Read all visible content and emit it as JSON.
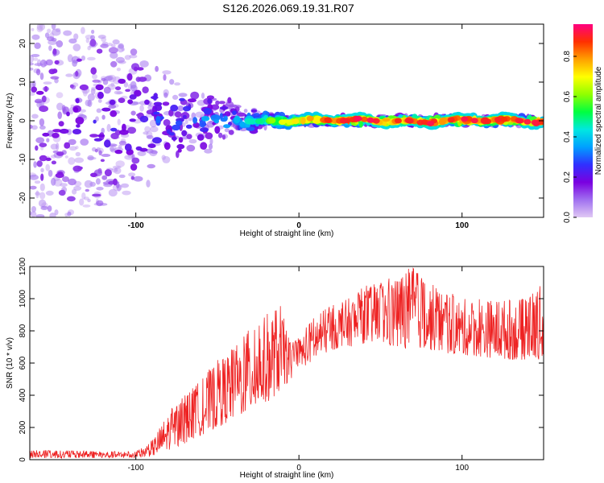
{
  "page_title": "S126.2026.069.19.31.R07",
  "colors": {
    "axis": "#000000",
    "snr_line": "#ee2222",
    "scatter": "#7a20e8",
    "colormap": [
      "#e0c8f4",
      "#a070f0",
      "#7a00e0",
      "#3030ff",
      "#00a0ff",
      "#00e8e0",
      "#00ff40",
      "#90ff00",
      "#ffff00",
      "#ffa000",
      "#ff3000",
      "#ff0080"
    ]
  },
  "chart_data": [
    {
      "type": "heatmap",
      "title": "",
      "xlabel": "Height of straight line (km)",
      "ylabel": "Frequency (Hz)",
      "xlim": [
        -165,
        150
      ],
      "ylim": [
        -25,
        25
      ],
      "x_ticks": [
        -100,
        0,
        100
      ],
      "x_tick_labels": [
        "-100",
        "0",
        "100"
      ],
      "y_ticks": [
        -20,
        -10,
        0,
        10,
        20
      ],
      "y_tick_labels": [
        "-20",
        "-10",
        "0",
        "10",
        "20"
      ],
      "colorbar": {
        "label": "Normalized spectral amplitude",
        "range": [
          0,
          0.96
        ],
        "ticks": [
          0.0,
          0.2,
          0.4,
          0.6,
          0.8
        ],
        "tick_labels": [
          "0.0",
          "0.2",
          "0.4",
          "0.6",
          "0.8"
        ]
      },
      "spread_hz": [
        [
          -165,
          25
        ],
        [
          -130,
          24
        ],
        [
          -100,
          18
        ],
        [
          -80,
          12
        ],
        [
          -60,
          7
        ],
        [
          -40,
          5
        ],
        [
          -25,
          2.5
        ],
        [
          -10,
          1.5
        ],
        [
          0,
          1.2
        ],
        [
          50,
          1.2
        ],
        [
          150,
          1.2
        ]
      ],
      "peak_amplitude": [
        [
          -165,
          0.22
        ],
        [
          -100,
          0.28
        ],
        [
          -80,
          0.33
        ],
        [
          -60,
          0.4
        ],
        [
          -40,
          0.42
        ],
        [
          -25,
          0.5
        ],
        [
          -10,
          0.7
        ],
        [
          0,
          0.85
        ],
        [
          20,
          0.95
        ],
        [
          150,
          0.92
        ]
      ]
    },
    {
      "type": "line",
      "title": "",
      "xlabel": "Height of straight line (km)",
      "ylabel": "SNR (10 * v/v)",
      "xlim": [
        -165,
        150
      ],
      "ylim": [
        0,
        1200
      ],
      "x_ticks": [
        -100,
        0,
        100
      ],
      "x_tick_labels": [
        "-100",
        "0",
        "100"
      ],
      "y_ticks": [
        0,
        200,
        400,
        600,
        800,
        1000,
        1200
      ],
      "y_tick_labels": [
        "0",
        "200",
        "400",
        "600",
        "800",
        "1000",
        "1200"
      ],
      "series": [
        {
          "name": "SNR",
          "envelope": [
            [
              -165,
              10,
              60
            ],
            [
              -100,
              10,
              50
            ],
            [
              -90,
              20,
              120
            ],
            [
              -80,
              60,
              300
            ],
            [
              -70,
              100,
              400
            ],
            [
              -60,
              150,
              500
            ],
            [
              -50,
              200,
              620
            ],
            [
              -40,
              250,
              700
            ],
            [
              -30,
              300,
              820
            ],
            [
              -20,
              350,
              900
            ],
            [
              -12,
              420,
              980
            ],
            [
              -5,
              500,
              720
            ],
            [
              0,
              560,
              760
            ],
            [
              10,
              620,
              900
            ],
            [
              20,
              680,
              960
            ],
            [
              30,
              700,
              1000
            ],
            [
              40,
              720,
              1080
            ],
            [
              50,
              720,
              1100
            ],
            [
              60,
              680,
              1150
            ],
            [
              70,
              700,
              1200
            ],
            [
              80,
              680,
              1100
            ],
            [
              90,
              660,
              1050
            ],
            [
              100,
              650,
              1000
            ],
            [
              110,
              640,
              1000
            ],
            [
              120,
              630,
              1000
            ],
            [
              130,
              620,
              1000
            ],
            [
              140,
              620,
              1000
            ],
            [
              150,
              620,
              1100
            ]
          ]
        }
      ]
    }
  ]
}
